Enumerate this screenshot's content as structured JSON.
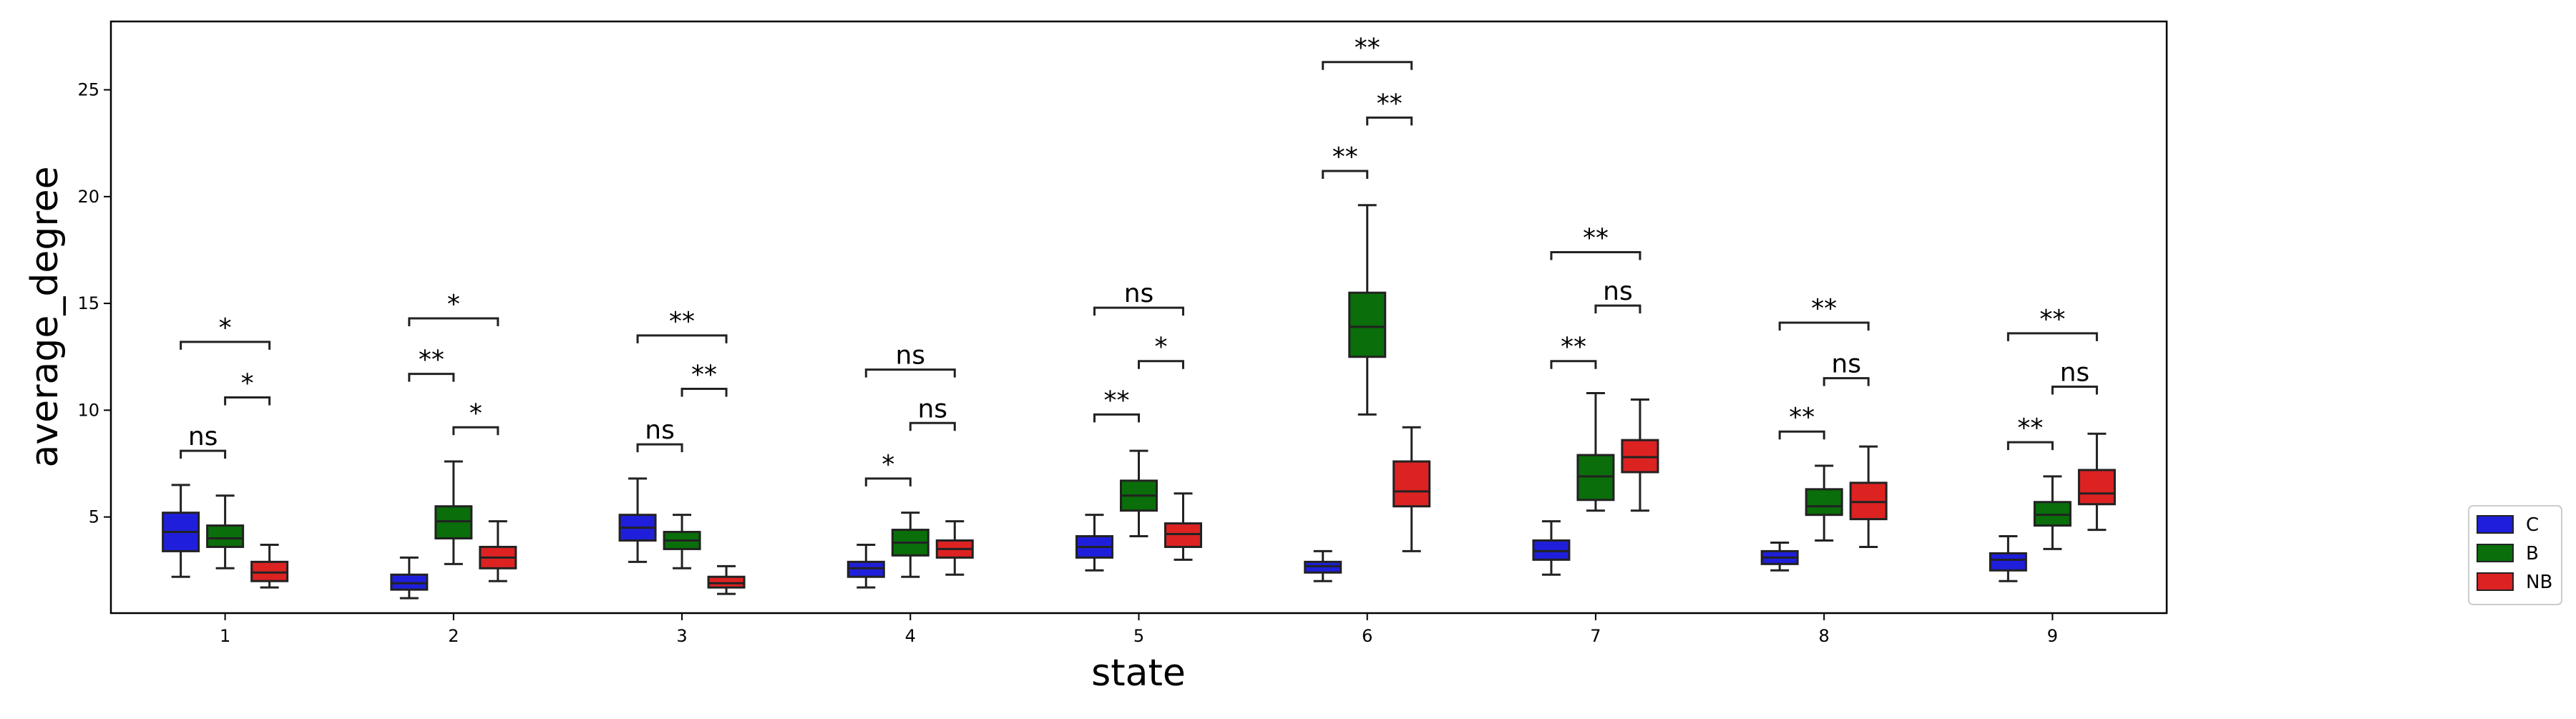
{
  "chart_data": {
    "type": "box",
    "xlabel": "state",
    "ylabel": "average_degree",
    "categories": [
      "1",
      "2",
      "3",
      "4",
      "5",
      "6",
      "7",
      "8",
      "9"
    ],
    "ylim": [
      0.5,
      28.2
    ],
    "yticks": [
      5,
      10,
      15,
      20,
      25
    ],
    "grid": false,
    "legend_position": "right",
    "series": [
      {
        "name": "C",
        "color": "#1f1fdb"
      },
      {
        "name": "B",
        "color": "#0a6e0a"
      },
      {
        "name": "NB",
        "color": "#dd2222"
      }
    ],
    "boxes": [
      [
        {
          "whislo": 2.2,
          "q1": 3.4,
          "med": 4.3,
          "q3": 5.2,
          "whishi": 6.5
        },
        {
          "whislo": 2.6,
          "q1": 3.6,
          "med": 4.0,
          "q3": 4.6,
          "whishi": 6.0
        },
        {
          "whislo": 1.7,
          "q1": 2.0,
          "med": 2.4,
          "q3": 2.9,
          "whishi": 3.7
        }
      ],
      [
        {
          "whislo": 1.2,
          "q1": 1.6,
          "med": 1.9,
          "q3": 2.3,
          "whishi": 3.1
        },
        {
          "whislo": 2.8,
          "q1": 4.0,
          "med": 4.8,
          "q3": 5.5,
          "whishi": 7.6
        },
        {
          "whislo": 2.0,
          "q1": 2.6,
          "med": 3.1,
          "q3": 3.6,
          "whishi": 4.8
        }
      ],
      [
        {
          "whislo": 2.9,
          "q1": 3.9,
          "med": 4.5,
          "q3": 5.1,
          "whishi": 6.8
        },
        {
          "whislo": 2.6,
          "q1": 3.5,
          "med": 3.9,
          "q3": 4.3,
          "whishi": 5.1
        },
        {
          "whislo": 1.4,
          "q1": 1.7,
          "med": 1.9,
          "q3": 2.2,
          "whishi": 2.7
        }
      ],
      [
        {
          "whislo": 1.7,
          "q1": 2.2,
          "med": 2.6,
          "q3": 2.9,
          "whishi": 3.7
        },
        {
          "whislo": 2.2,
          "q1": 3.2,
          "med": 3.8,
          "q3": 4.4,
          "whishi": 5.2
        },
        {
          "whislo": 2.3,
          "q1": 3.1,
          "med": 3.5,
          "q3": 3.9,
          "whishi": 4.8
        }
      ],
      [
        {
          "whislo": 2.5,
          "q1": 3.1,
          "med": 3.6,
          "q3": 4.1,
          "whishi": 5.1
        },
        {
          "whislo": 4.1,
          "q1": 5.3,
          "med": 6.0,
          "q3": 6.7,
          "whishi": 8.1
        },
        {
          "whislo": 3.0,
          "q1": 3.6,
          "med": 4.2,
          "q3": 4.7,
          "whishi": 6.1
        }
      ],
      [
        {
          "whislo": 2.0,
          "q1": 2.4,
          "med": 2.7,
          "q3": 2.9,
          "whishi": 3.4
        },
        {
          "whislo": 9.8,
          "q1": 12.5,
          "med": 13.9,
          "q3": 15.5,
          "whishi": 19.6
        },
        {
          "whislo": 3.4,
          "q1": 5.5,
          "med": 6.2,
          "q3": 7.6,
          "whishi": 9.2
        }
      ],
      [
        {
          "whislo": 2.3,
          "q1": 3.0,
          "med": 3.4,
          "q3": 3.9,
          "whishi": 4.8
        },
        {
          "whislo": 5.3,
          "q1": 5.8,
          "med": 6.9,
          "q3": 7.9,
          "whishi": 10.8
        },
        {
          "whislo": 5.3,
          "q1": 7.1,
          "med": 7.8,
          "q3": 8.6,
          "whishi": 10.5
        }
      ],
      [
        {
          "whislo": 2.5,
          "q1": 2.8,
          "med": 3.1,
          "q3": 3.4,
          "whishi": 3.8
        },
        {
          "whislo": 3.9,
          "q1": 5.1,
          "med": 5.5,
          "q3": 6.3,
          "whishi": 7.4
        },
        {
          "whislo": 3.6,
          "q1": 4.9,
          "med": 5.7,
          "q3": 6.6,
          "whishi": 8.3
        }
      ],
      [
        {
          "whislo": 2.0,
          "q1": 2.5,
          "med": 3.0,
          "q3": 3.3,
          "whishi": 4.1
        },
        {
          "whislo": 3.5,
          "q1": 4.6,
          "med": 5.1,
          "q3": 5.7,
          "whishi": 6.9
        },
        {
          "whislo": 4.4,
          "q1": 5.6,
          "med": 6.1,
          "q3": 7.2,
          "whishi": 8.9
        }
      ]
    ],
    "annotations": [
      [
        {
          "pair": "C-B",
          "label": "ns",
          "y": 8.1
        },
        {
          "pair": "B-NB",
          "label": "*",
          "y": 10.6
        },
        {
          "pair": "C-NB",
          "label": "*",
          "y": 13.2
        }
      ],
      [
        {
          "pair": "C-B",
          "label": "**",
          "y": 11.7
        },
        {
          "pair": "B-NB",
          "label": "*",
          "y": 9.2
        },
        {
          "pair": "C-NB",
          "label": "*",
          "y": 14.3
        }
      ],
      [
        {
          "pair": "C-B",
          "label": "ns",
          "y": 8.4
        },
        {
          "pair": "B-NB",
          "label": "**",
          "y": 11.0
        },
        {
          "pair": "C-NB",
          "label": "**",
          "y": 13.5
        }
      ],
      [
        {
          "pair": "C-B",
          "label": "*",
          "y": 6.8
        },
        {
          "pair": "B-NB",
          "label": "ns",
          "y": 9.4
        },
        {
          "pair": "C-NB",
          "label": "ns",
          "y": 11.9
        }
      ],
      [
        {
          "pair": "C-B",
          "label": "**",
          "y": 9.8
        },
        {
          "pair": "B-NB",
          "label": "*",
          "y": 12.3
        },
        {
          "pair": "C-NB",
          "label": "ns",
          "y": 14.8
        }
      ],
      [
        {
          "pair": "C-B",
          "label": "**",
          "y": 21.2
        },
        {
          "pair": "B-NB",
          "label": "**",
          "y": 23.7
        },
        {
          "pair": "C-NB",
          "label": "**",
          "y": 26.3
        }
      ],
      [
        {
          "pair": "C-B",
          "label": "**",
          "y": 12.3
        },
        {
          "pair": "B-NB",
          "label": "ns",
          "y": 14.9
        },
        {
          "pair": "C-NB",
          "label": "**",
          "y": 17.4
        }
      ],
      [
        {
          "pair": "C-B",
          "label": "**",
          "y": 9.0
        },
        {
          "pair": "B-NB",
          "label": "ns",
          "y": 11.5
        },
        {
          "pair": "C-NB",
          "label": "**",
          "y": 14.1
        }
      ],
      [
        {
          "pair": "C-B",
          "label": "**",
          "y": 8.5
        },
        {
          "pair": "B-NB",
          "label": "ns",
          "y": 11.1
        },
        {
          "pair": "C-NB",
          "label": "**",
          "y": 13.6
        }
      ]
    ]
  }
}
